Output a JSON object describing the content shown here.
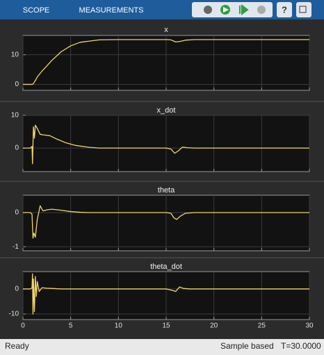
{
  "toolbar": {
    "tabs": [
      "SCOPE",
      "MEASUREMENTS"
    ]
  },
  "status_bar": {
    "state": "Ready",
    "mode": "Sample based",
    "time": "T=30.0000"
  },
  "chart_data": [
    {
      "type": "line",
      "title": "x",
      "color": "#f2d66b",
      "xlim": [
        0,
        30
      ],
      "ylim": [
        -2,
        16.5
      ],
      "yticks": [
        0,
        10
      ],
      "grid": true,
      "x": [
        0,
        0.8,
        1,
        1.1,
        1.3,
        1.5,
        2,
        2.5,
        3,
        4,
        5,
        6,
        8,
        10,
        15,
        15.5,
        16,
        16.5,
        17,
        18,
        30
      ],
      "values": [
        0,
        0,
        0,
        0.3,
        1.3,
        2.5,
        4.5,
        6.2,
        8,
        11,
        13,
        14.2,
        15,
        15.1,
        15.1,
        15,
        14.3,
        14.5,
        14.9,
        15.1,
        15.1
      ]
    },
    {
      "type": "line",
      "title": "x_dot",
      "color": "#f2d66b",
      "xlim": [
        0,
        30
      ],
      "ylim": [
        -7.2,
        10
      ],
      "yticks": [
        0,
        10
      ],
      "grid": true,
      "x": [
        0,
        0.8,
        0.95,
        1.0,
        1.1,
        1.2,
        1.3,
        1.5,
        1.8,
        2.2,
        2.8,
        3.5,
        4.5,
        5.5,
        7,
        8,
        15,
        15.5,
        15.9,
        16.3,
        16.7,
        17.2,
        18,
        30
      ],
      "values": [
        0,
        0,
        0.5,
        -4.8,
        6.5,
        3,
        7,
        6,
        4.2,
        4,
        3.8,
        2.8,
        1.6,
        0.8,
        0.2,
        0,
        0,
        -0.3,
        -1.6,
        -0.8,
        0.3,
        0.1,
        0,
        0
      ]
    },
    {
      "type": "line",
      "title": "theta",
      "color": "#f2d66b",
      "xlim": [
        0,
        30
      ],
      "ylim": [
        -1.12,
        0.51
      ],
      "yticks": [
        0,
        -1
      ],
      "grid": true,
      "x": [
        0,
        0.8,
        0.95,
        1.05,
        1.15,
        1.3,
        1.5,
        1.8,
        2.1,
        2.5,
        3,
        4,
        5,
        6,
        7,
        15,
        15.5,
        15.8,
        16.1,
        16.5,
        17,
        18,
        30
      ],
      "values": [
        0,
        0,
        -0.05,
        -0.75,
        -0.6,
        -0.72,
        -0.2,
        0.2,
        0.05,
        0.08,
        0.1,
        0.07,
        0.03,
        0.01,
        0,
        0,
        -0.02,
        -0.15,
        -0.2,
        -0.1,
        -0.02,
        0,
        0
      ]
    },
    {
      "type": "line",
      "title": "theta_dot",
      "color": "#f2d66b",
      "xlim": [
        0,
        30
      ],
      "ylim": [
        -12.2,
        6.9
      ],
      "yticks": [
        0,
        -10
      ],
      "grid": true,
      "x": [
        0,
        0.8,
        0.95,
        1.0,
        1.05,
        1.1,
        1.2,
        1.3,
        1.4,
        1.5,
        1.7,
        2,
        2.5,
        3,
        4,
        15,
        15.6,
        16,
        16.4,
        16.8,
        17.5,
        30
      ],
      "values": [
        0,
        0,
        0.5,
        6,
        -10,
        4,
        -9,
        5,
        -3,
        3,
        -1,
        0.5,
        0.3,
        0.2,
        0,
        0,
        -0.5,
        -1,
        0.8,
        0.2,
        0,
        0
      ],
      "xticks": [
        0,
        5,
        10,
        15,
        20,
        25,
        30
      ]
    }
  ]
}
